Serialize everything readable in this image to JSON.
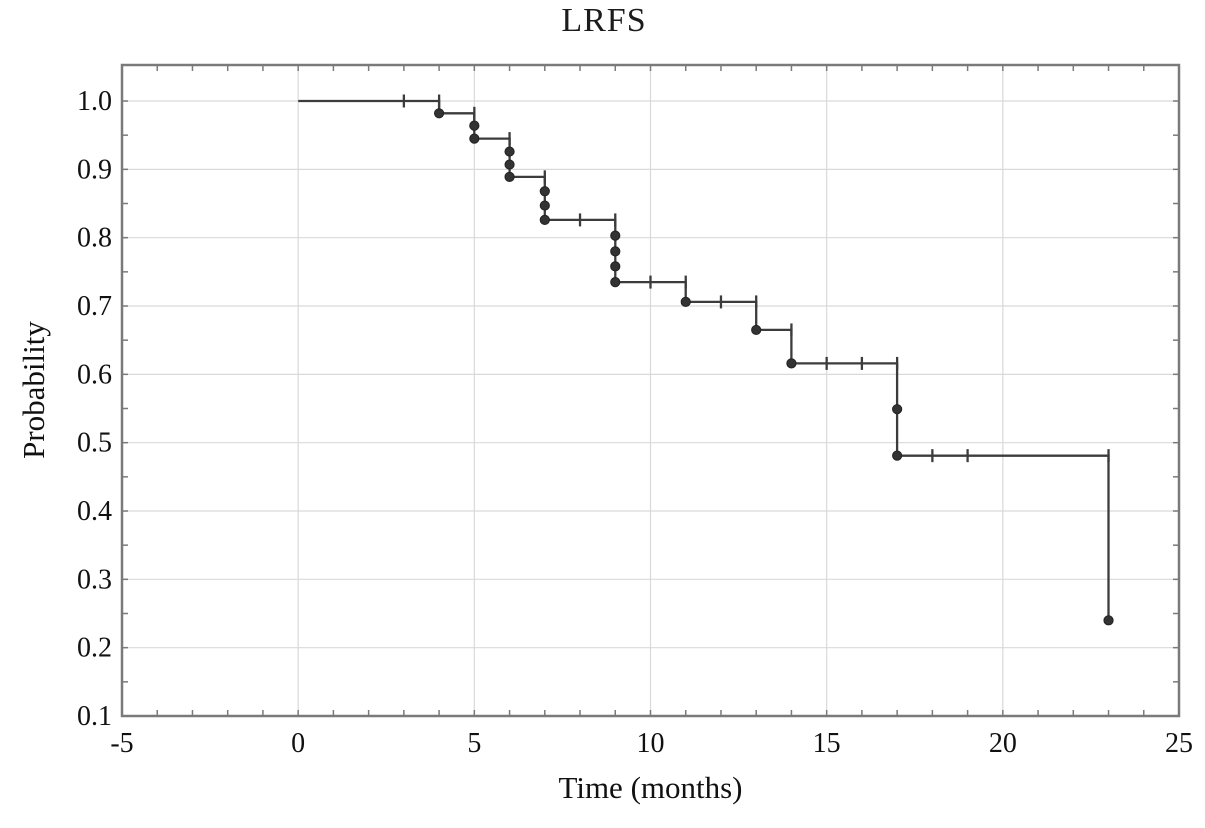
{
  "chart_data": {
    "type": "line",
    "subtype": "kaplan-meier-step",
    "title": "LRFS",
    "xlabel": "Time (months)",
    "ylabel": "Probability",
    "xlim": [
      -5,
      25
    ],
    "ylim": [
      0.1,
      1.0527
    ],
    "grid": true,
    "legend": "none",
    "xticks": [
      -5,
      0,
      5,
      10,
      15,
      20,
      25
    ],
    "xtick_labels": [
      "-5",
      "0",
      "5",
      "10",
      "15",
      "20",
      "25"
    ],
    "yticks": [
      1.0,
      0.9,
      0.8,
      0.7,
      0.6,
      0.5,
      0.4,
      0.3,
      0.2,
      0.1
    ],
    "ytick_labels": [
      "1.0",
      "0.9",
      "0.8",
      "0.7",
      "0.6",
      "0.5",
      "0.4",
      "0.3",
      "0.2",
      "0.1"
    ],
    "x_minor_tick_step": 1,
    "y_minor_tick_step": 0.05,
    "gridline_x_values": [
      0,
      5,
      10,
      15,
      20
    ],
    "gridline_y_values": [
      1.0,
      0.9,
      0.8,
      0.7,
      0.6,
      0.5,
      0.4,
      0.3,
      0.2
    ],
    "steps": [
      [
        0,
        1.0
      ],
      [
        4,
        1.0
      ],
      [
        4,
        0.982
      ],
      [
        5,
        0.982
      ],
      [
        5,
        0.945
      ],
      [
        6,
        0.945
      ],
      [
        6,
        0.889
      ],
      [
        7,
        0.889
      ],
      [
        7,
        0.826
      ],
      [
        9,
        0.826
      ],
      [
        9,
        0.735
      ],
      [
        11,
        0.735
      ],
      [
        11,
        0.706
      ],
      [
        13,
        0.706
      ],
      [
        13,
        0.665
      ],
      [
        14,
        0.665
      ],
      [
        14,
        0.616
      ],
      [
        17,
        0.616
      ],
      [
        17,
        0.481
      ],
      [
        23,
        0.481
      ],
      [
        23,
        0.24
      ]
    ],
    "event_points": [
      [
        4,
        0.982
      ],
      [
        5,
        0.964
      ],
      [
        5,
        0.945
      ],
      [
        6,
        0.926
      ],
      [
        6,
        0.907
      ],
      [
        6,
        0.889
      ],
      [
        7,
        0.868
      ],
      [
        7,
        0.847
      ],
      [
        7,
        0.826
      ],
      [
        9,
        0.803
      ],
      [
        9,
        0.78
      ],
      [
        9,
        0.758
      ],
      [
        9,
        0.735
      ],
      [
        11,
        0.706
      ],
      [
        13,
        0.665
      ],
      [
        14,
        0.616
      ],
      [
        17,
        0.549
      ],
      [
        17,
        0.481
      ],
      [
        23,
        0.24
      ]
    ],
    "censor_marks": [
      [
        3,
        1.0
      ],
      [
        4,
        1.0
      ],
      [
        5,
        0.982
      ],
      [
        6,
        0.945
      ],
      [
        7,
        0.889
      ],
      [
        8,
        0.826
      ],
      [
        9,
        0.826
      ],
      [
        10,
        0.735
      ],
      [
        11,
        0.735
      ],
      [
        12,
        0.706
      ],
      [
        13,
        0.706
      ],
      [
        14,
        0.665
      ],
      [
        15,
        0.616
      ],
      [
        16,
        0.616
      ],
      [
        17,
        0.616
      ],
      [
        18,
        0.481
      ],
      [
        19,
        0.481
      ],
      [
        23,
        0.481
      ]
    ],
    "colors": {
      "curve": "#3c3c3c",
      "marker": "#333333",
      "frame": "#7a7a7a",
      "grid": "#d9d9d9",
      "background": "#ffffff",
      "text": "#111111"
    }
  }
}
